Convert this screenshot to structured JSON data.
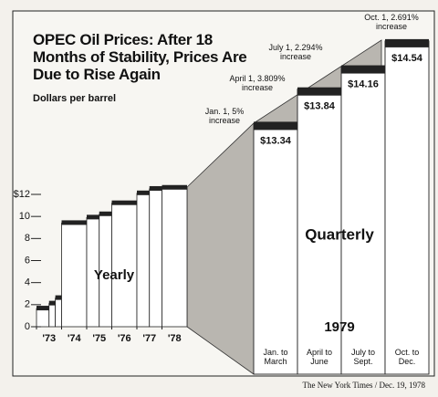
{
  "title": "OPEC Oil Prices: After 18 Months of Stability, Prices Are Due to Rise Again",
  "subtitle": "Dollars per barrel",
  "source": "The New York Times / Dec. 19, 1978",
  "chart_data": [
    {
      "type": "step",
      "label": "Yearly",
      "x": [
        1973,
        1973.5,
        1973.75,
        1974,
        1975,
        1975.5,
        1976,
        1977,
        1977.5,
        1978
      ],
      "values": [
        1.65,
        2.1,
        2.6,
        9.4,
        9.9,
        10.2,
        11.2,
        12.1,
        12.5,
        12.6
      ],
      "xlim": [
        1973,
        1979
      ],
      "xticks": [
        {
          "value": 1973,
          "label": "'73"
        },
        {
          "value": 1974,
          "label": "'74"
        },
        {
          "value": 1975,
          "label": "'75"
        },
        {
          "value": 1976,
          "label": "'76"
        },
        {
          "value": 1977,
          "label": "'77"
        },
        {
          "value": 1978,
          "label": "'78"
        }
      ],
      "ylim": [
        0,
        12
      ],
      "yticks": [
        0,
        2,
        4,
        6,
        8,
        10,
        {
          "value": 12,
          "label": "$12"
        }
      ]
    },
    {
      "type": "bar",
      "label": "Quarterly",
      "year": "1979",
      "categories": [
        "Jan. to March",
        "April to June",
        "July to Sept.",
        "Oct. to Dec."
      ],
      "values": [
        13.34,
        13.84,
        14.16,
        14.54
      ],
      "value_labels": [
        "$13.34",
        "$13.84",
        "$14.16",
        "$14.54"
      ],
      "annotations": [
        "Jan. 1, 5% increase",
        "April 1, 3.809% increase",
        "July 1, 2.294% increase",
        "Oct. 1, 2.691% increase"
      ],
      "ylim": [
        9.7,
        14.87
      ]
    }
  ]
}
